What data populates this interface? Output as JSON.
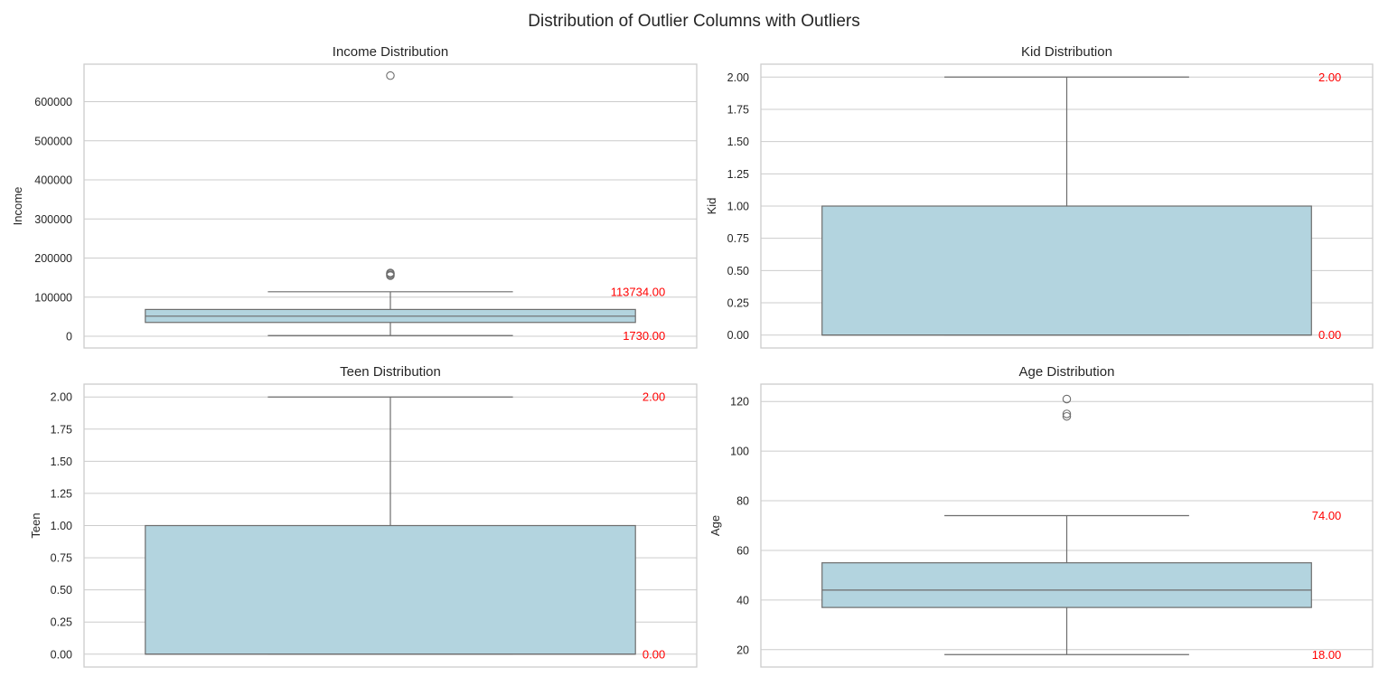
{
  "suptitle": "Distribution of Outlier Columns with Outliers",
  "colors": {
    "box_fill": "#b3d4df",
    "annotation": "#ff0000",
    "line": "#6d6d6d",
    "grid": "#cccccc"
  },
  "chart_data": [
    {
      "type": "box",
      "title": "Income Distribution",
      "ylabel": "Income",
      "ylim": [
        -30000,
        696000
      ],
      "yticks": [
        0,
        100000,
        200000,
        300000,
        400000,
        500000,
        600000
      ],
      "ytick_labels": [
        "0",
        "100000",
        "200000",
        "300000",
        "400000",
        "500000",
        "600000"
      ],
      "box": {
        "whislo": 1730,
        "q1": 35300,
        "med": 51400,
        "q3": 68500,
        "whishi": 113734
      },
      "fliers": [
        666666,
        162000,
        160000,
        157000,
        155000
      ],
      "annotations": [
        {
          "text": "113734.00",
          "value": 113734
        },
        {
          "text": "1730.00",
          "value": 1730
        }
      ]
    },
    {
      "type": "box",
      "title": "Kid Distribution",
      "ylabel": "Kid",
      "ylim": [
        -0.1,
        2.1
      ],
      "yticks": [
        0,
        0.25,
        0.5,
        0.75,
        1,
        1.25,
        1.5,
        1.75,
        2
      ],
      "ytick_labels": [
        "0.00",
        "0.25",
        "0.50",
        "0.75",
        "1.00",
        "1.25",
        "1.50",
        "1.75",
        "2.00"
      ],
      "box": {
        "whislo": 0,
        "q1": 0,
        "med": 0,
        "q3": 1,
        "whishi": 2
      },
      "fliers": [],
      "annotations": [
        {
          "text": "2.00",
          "value": 2
        },
        {
          "text": "0.00",
          "value": 0
        }
      ]
    },
    {
      "type": "box",
      "title": "Teen Distribution",
      "ylabel": "Teen",
      "ylim": [
        -0.1,
        2.1
      ],
      "yticks": [
        0,
        0.25,
        0.5,
        0.75,
        1,
        1.25,
        1.5,
        1.75,
        2
      ],
      "ytick_labels": [
        "0.00",
        "0.25",
        "0.50",
        "0.75",
        "1.00",
        "1.25",
        "1.50",
        "1.75",
        "2.00"
      ],
      "box": {
        "whislo": 0,
        "q1": 0,
        "med": 0,
        "q3": 1,
        "whishi": 2
      },
      "fliers": [],
      "annotations": [
        {
          "text": "2.00",
          "value": 2
        },
        {
          "text": "0.00",
          "value": 0
        }
      ]
    },
    {
      "type": "box",
      "title": "Age Distribution",
      "ylabel": "Age",
      "ylim": [
        13,
        127
      ],
      "yticks": [
        20,
        40,
        60,
        80,
        100,
        120
      ],
      "ytick_labels": [
        "20",
        "40",
        "60",
        "80",
        "100",
        "120"
      ],
      "box": {
        "whislo": 18,
        "q1": 37,
        "med": 44,
        "q3": 55,
        "whishi": 74
      },
      "fliers": [
        121,
        115,
        114
      ],
      "annotations": [
        {
          "text": "74.00",
          "value": 74
        },
        {
          "text": "18.00",
          "value": 18
        }
      ]
    }
  ]
}
